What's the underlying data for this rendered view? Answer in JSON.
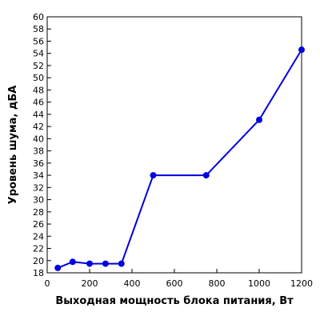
{
  "chart_data": {
    "type": "line",
    "xlabel": "Выходная мощность блока питания, Вт",
    "ylabel": "Уровень шума, дБА",
    "xlim": [
      0,
      1200
    ],
    "ylim": [
      18,
      60
    ],
    "xticks": [
      0,
      200,
      400,
      600,
      800,
      1000,
      1200
    ],
    "yticks": [
      18,
      20,
      22,
      24,
      26,
      28,
      30,
      32,
      34,
      36,
      38,
      40,
      42,
      44,
      46,
      48,
      50,
      52,
      54,
      56,
      58,
      60
    ],
    "grid": false,
    "series": [
      {
        "color": "#0000e0",
        "x": [
          50,
          120,
          200,
          275,
          350,
          500,
          750,
          1000,
          1200
        ],
        "y": [
          18.8,
          19.8,
          19.5,
          19.5,
          19.5,
          34.0,
          34.0,
          43.1,
          54.6
        ]
      }
    ]
  }
}
